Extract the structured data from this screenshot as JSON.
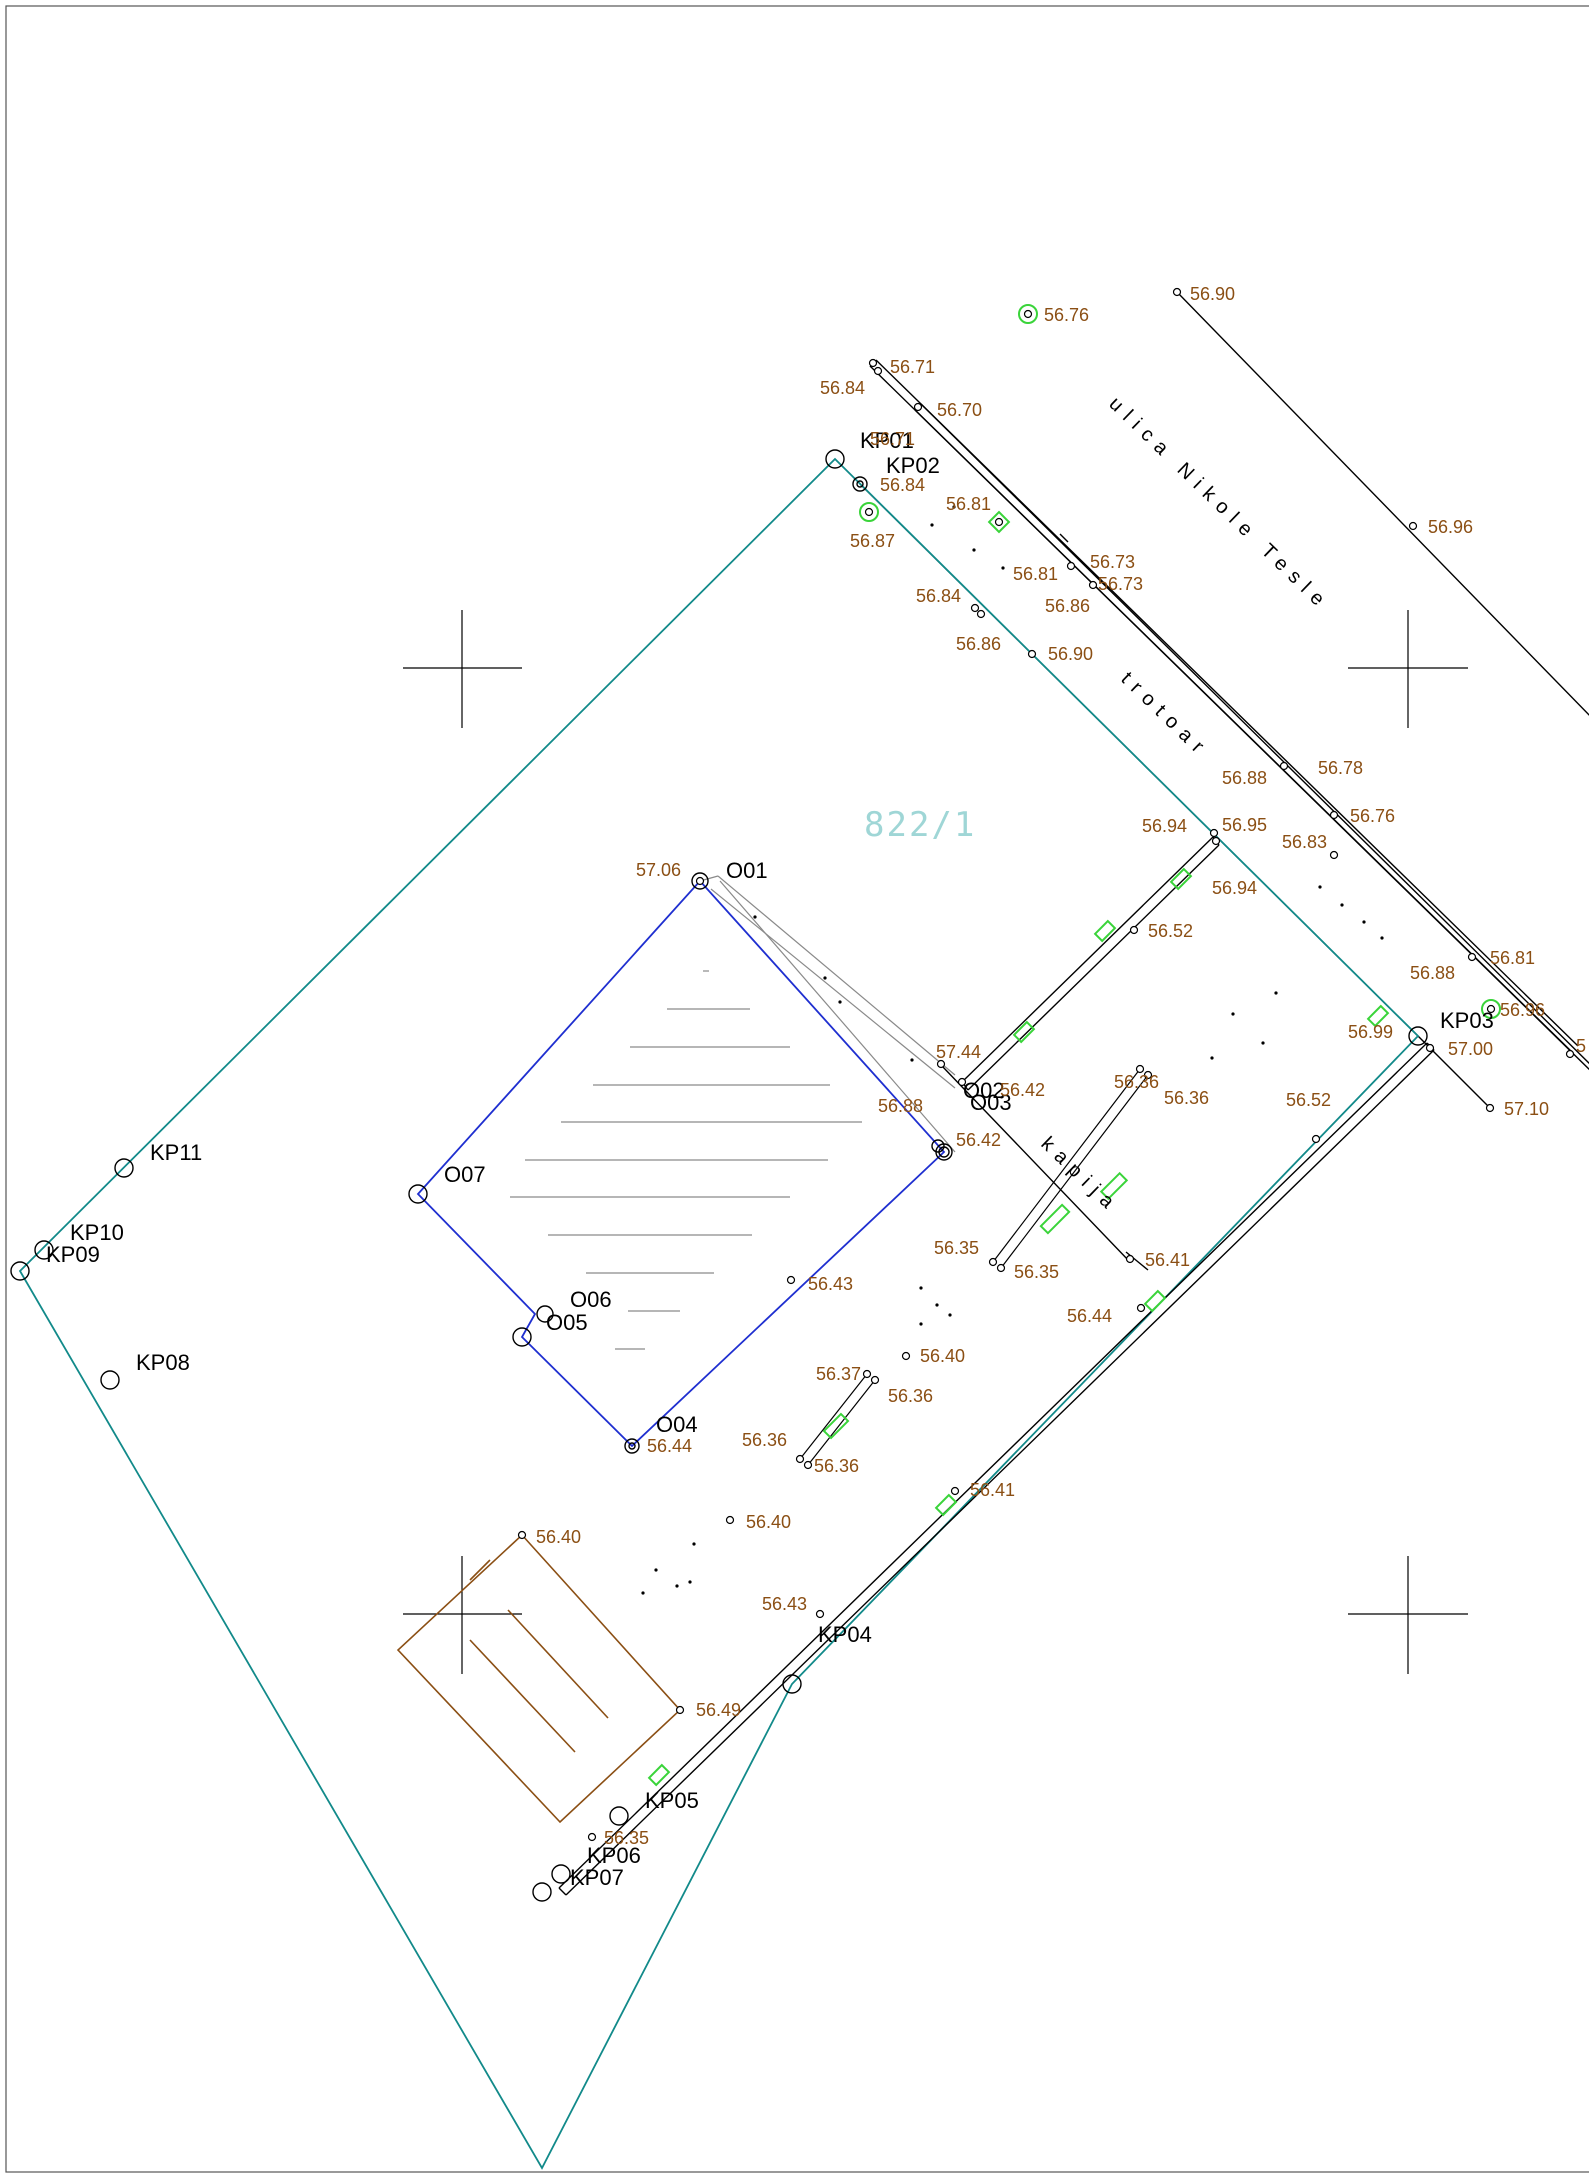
{
  "colors": {
    "parcel_boundary": "#128a8a",
    "building_outline": "#1f2fd0",
    "terrace_outline": "#8b4f14",
    "elevation_text": "#8b4f14",
    "marker_green": "#3ad43a",
    "lines": "#000000",
    "hatch": "#8a8a8a",
    "parcel_label": "#9fd6d6"
  },
  "labels": {
    "street_name": "ulica Nikole Tesle",
    "sidewalk": "trotoar",
    "gate": "kapija",
    "parcel_number": "822/1"
  },
  "points": {
    "KP01": "KP01",
    "KP02": "KP02",
    "KP03": "KP03",
    "KP04": "KP04",
    "KP05": "KP05",
    "KP06": "KP06",
    "KP07": "KP07",
    "KP08": "KP08",
    "KP09": "KP09",
    "KP10": "KP10",
    "KP11": "KP11",
    "O01": "O01",
    "O02": "O02",
    "O03": "O03",
    "O04": "O04",
    "O05": "O05",
    "O06": "O06",
    "O07": "O07"
  },
  "elevations": [
    "56.90",
    "56.76",
    "56.71",
    "56.84",
    "56.70",
    "56.71",
    "56.84",
    "56.87",
    "56.81",
    "56.96",
    "56.73",
    "56.73",
    "56.81",
    "56.86",
    "56.84",
    "56.86",
    "56.90",
    "56.78",
    "56.88",
    "56.76",
    "56.94",
    "56.95",
    "56.83",
    "56.94",
    "56.52",
    "56.81",
    "56.88",
    "56.96",
    "56.99",
    "57.00",
    "57.10",
    "57.06",
    "57.44",
    "56.42",
    "56.88",
    "56.42",
    "56.36",
    "56.36",
    "56.52",
    "56.35",
    "56.35",
    "56.41",
    "56.44",
    "56.43",
    "56.40",
    "56.37",
    "56.36",
    "56.36",
    "56.36",
    "56.44",
    "56.41",
    "56.40",
    "56.40",
    "56.43",
    "56.49",
    "56.35",
    "5"
  ]
}
